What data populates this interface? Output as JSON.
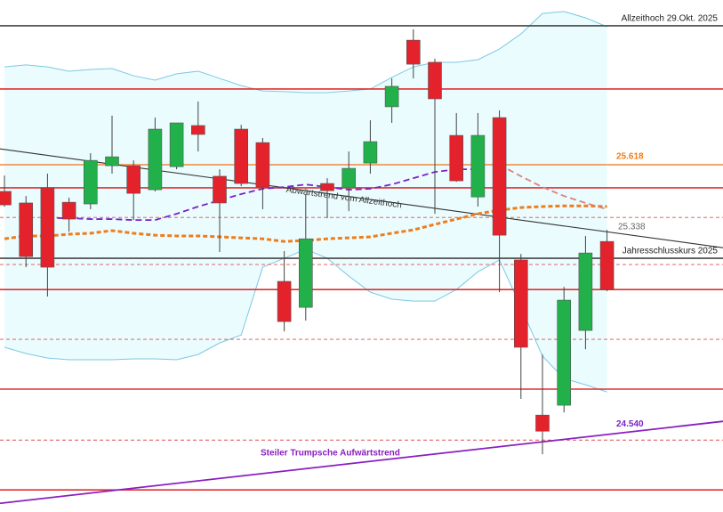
{
  "chart_data": {
    "type": "candlestick",
    "categories": [
      null,
      null,
      null,
      null,
      null,
      null,
      null,
      null,
      null,
      null,
      null,
      null,
      null,
      null,
      null,
      null,
      null,
      null,
      null,
      null,
      null,
      null,
      null,
      null,
      null,
      null,
      null,
      null,
      null
    ],
    "open": [
      25.507,
      25.459,
      25.522,
      25.462,
      25.455,
      25.614,
      25.614,
      25.514,
      25.61,
      25.781,
      25.57,
      25.766,
      25.71,
      25.133,
      25.025,
      25.54,
      25.522,
      25.625,
      25.859,
      26.136,
      26.044,
      25.74,
      25.484,
      25.814,
      25.222,
      24.577,
      24.618,
      24.929,
      25.299
    ],
    "high": [
      25.573,
      25.488,
      25.581,
      25.481,
      25.666,
      25.822,
      25.636,
      25.814,
      25.792,
      25.881,
      25.599,
      25.784,
      25.729,
      25.259,
      25.496,
      25.562,
      25.673,
      25.803,
      25.977,
      26.181,
      26.059,
      25.833,
      25.833,
      25.844,
      25.247,
      24.829,
      25.11,
      25.322,
      25.347
    ],
    "low": [
      25.444,
      25.192,
      25.07,
      25.34,
      25.433,
      25.581,
      25.388,
      25.507,
      25.599,
      25.673,
      25.255,
      25.529,
      25.433,
      24.925,
      24.97,
      25.396,
      25.425,
      25.581,
      25.792,
      25.977,
      25.414,
      25.547,
      25.444,
      25.088,
      24.644,
      24.414,
      24.588,
      24.851,
      25.092
    ],
    "close": [
      25.451,
      25.236,
      25.192,
      25.392,
      25.636,
      25.651,
      25.499,
      25.766,
      25.792,
      25.744,
      25.459,
      25.54,
      25.525,
      24.966,
      25.31,
      25.51,
      25.603,
      25.714,
      25.944,
      26.036,
      25.892,
      25.551,
      25.74,
      25.325,
      24.859,
      24.51,
      25.055,
      25.251,
      25.099
    ],
    "up_color": "#22b04b",
    "down_color": "#e3222b",
    "ylim": [
      24.174,
      26.303
    ],
    "bands": {
      "color": "#7ec8e3",
      "fill": "#eafcfe",
      "upper": [
        26.025,
        26.033,
        26.025,
        26.007,
        26.014,
        26.018,
        25.988,
        25.97,
        25.996,
        26.007,
        25.977,
        25.947,
        25.925,
        25.922,
        25.918,
        25.918,
        25.925,
        25.933,
        25.981,
        26.025,
        26.044,
        26.044,
        26.055,
        26.099,
        26.162,
        26.247,
        26.255,
        26.229,
        26.192
      ],
      "lower": [
        24.859,
        24.833,
        24.814,
        24.807,
        24.807,
        24.807,
        24.811,
        24.811,
        24.807,
        24.829,
        24.877,
        24.91,
        25.192,
        25.229,
        25.266,
        25.229,
        25.155,
        25.088,
        25.059,
        25.051,
        25.051,
        25.099,
        25.173,
        25.222,
        25.025,
        24.822,
        24.729,
        24.703,
        24.673
      ]
    },
    "series": [
      {
        "color": "#f07c1a",
        "values": [
          25.31,
          25.322,
          25.322,
          25.329,
          25.333,
          25.344,
          25.333,
          25.325,
          25.322,
          25.322,
          25.318,
          25.314,
          25.31,
          25.299,
          25.303,
          25.31,
          25.314,
          25.318,
          25.333,
          25.347,
          25.37,
          25.392,
          25.414,
          25.429,
          25.44,
          25.444,
          25.447,
          25.447,
          25.444
        ]
      },
      {
        "color": "#7a22c8",
        "values": [
          null,
          null,
          25.396,
          25.396,
          25.392,
          25.392,
          25.388,
          25.388,
          25.414,
          25.444,
          25.47,
          25.496,
          25.518,
          25.525,
          25.536,
          25.525,
          25.514,
          25.518,
          25.536,
          25.562,
          25.588,
          25.599,
          25.599,
          null,
          null,
          null,
          null,
          null,
          null
        ]
      },
      {
        "color": "#e08080",
        "values": [
          null,
          null,
          null,
          null,
          null,
          null,
          null,
          null,
          null,
          null,
          null,
          null,
          null,
          null,
          null,
          null,
          null,
          null,
          null,
          null,
          null,
          null,
          null,
          25.618,
          25.57,
          25.525,
          25.488,
          25.459,
          25.433
        ]
      }
    ],
    "levels": [
      {
        "value": 26.196,
        "color": "#444",
        "style": "solid",
        "label": "Allzeithoch 29.Okt. 2025"
      },
      {
        "value": 25.933,
        "color": "#e03030",
        "style": "solid"
      },
      {
        "value": 25.618,
        "color": "#f08a3c",
        "style": "solid"
      },
      {
        "value": 25.522,
        "color": "#e03030",
        "style": "solid"
      },
      {
        "value": 25.399,
        "color": "#e05050",
        "style": "dashed"
      },
      {
        "value": 25.229,
        "color": "#444",
        "style": "solid",
        "label": "Jahresschlusskurs 2025"
      },
      {
        "value": 25.203,
        "color": "#e05050",
        "style": "dashed"
      },
      {
        "value": 25.099,
        "color": "#e03030",
        "style": "solid"
      },
      {
        "value": 24.892,
        "color": "#e05050",
        "style": "dashed"
      },
      {
        "value": 24.685,
        "color": "#e03030",
        "style": "solid"
      },
      {
        "value": 24.473,
        "color": "#e05050",
        "style": "dashed"
      },
      {
        "value": 24.266,
        "color": "#e03030",
        "style": "solid"
      }
    ],
    "price_labels": [
      {
        "value": 25.618,
        "label": "25.618",
        "color": "#f07c1a"
      },
      {
        "value": 25.338,
        "label": "25.338",
        "color": "#666"
      },
      {
        "value": 24.54,
        "label": "24.540",
        "color": "#7a22c8"
      }
    ],
    "trendlines": [
      {
        "values": [
          25.684,
          25.273
        ],
        "color": "#333",
        "label": "Abwärtstrend vom Allzeithoch"
      },
      {
        "values": [
          24.21,
          24.551
        ],
        "color": "#8a1fc0",
        "label": "Steiler Trumpsche Aufwärtstrend"
      }
    ]
  }
}
